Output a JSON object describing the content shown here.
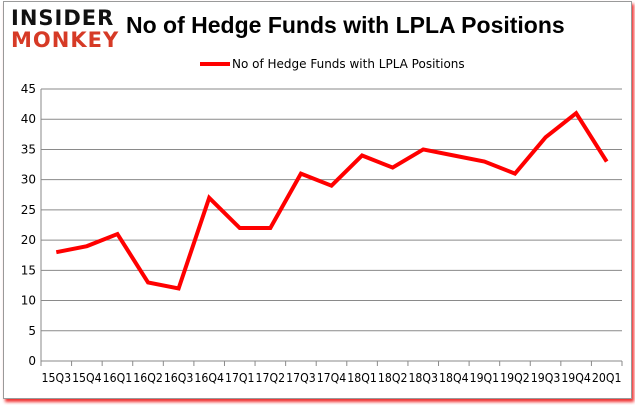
{
  "logo": {
    "line1": "INSIDER",
    "line2": "MONKEY"
  },
  "chart_data": {
    "type": "line",
    "title": "No of Hedge Funds with LPLA Positions",
    "categories": [
      "15Q3",
      "15Q4",
      "16Q1",
      "16Q2",
      "16Q3",
      "16Q4",
      "17Q1",
      "17Q2",
      "17Q3",
      "17Q4",
      "18Q1",
      "18Q2",
      "18Q3",
      "18Q4",
      "19Q1",
      "19Q2",
      "19Q3",
      "19Q4",
      "20Q1"
    ],
    "series": [
      {
        "name": "No of Hedge Funds with LPLA Positions",
        "color": "#ff0000",
        "values": [
          18,
          19,
          21,
          13,
          12,
          27,
          22,
          22,
          31,
          29,
          34,
          32,
          35,
          34,
          33,
          31,
          37,
          41,
          33
        ]
      }
    ],
    "ylim": [
      0,
      45
    ],
    "yticks": [
      0,
      5,
      10,
      15,
      20,
      25,
      30,
      35,
      40,
      45
    ],
    "grid": true,
    "legend": "top"
  }
}
